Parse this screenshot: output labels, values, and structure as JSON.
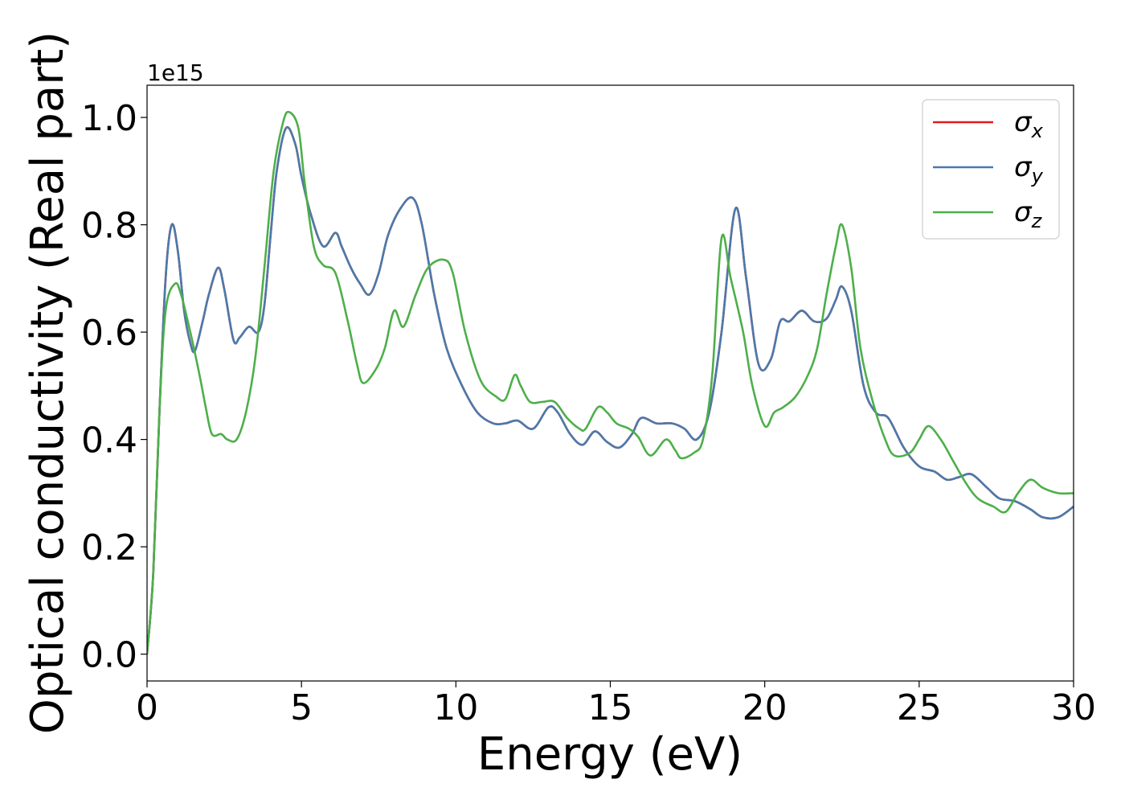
{
  "chart_data": {
    "type": "line",
    "title": "",
    "xlabel": "Energy (eV)",
    "ylabel": "Optical conductivity (Real part)",
    "y_offset_label": "1e15",
    "xlim": [
      0,
      30
    ],
    "ylim": [
      -0.05,
      1.06
    ],
    "x_ticks": [
      0,
      5,
      10,
      15,
      20,
      25,
      30
    ],
    "x_tick_labels": [
      "0",
      "5",
      "10",
      "15",
      "20",
      "25",
      "30"
    ],
    "y_ticks": [
      0.0,
      0.2,
      0.4,
      0.6,
      0.8,
      1.0
    ],
    "y_tick_labels": [
      "0.0",
      "0.2",
      "0.4",
      "0.6",
      "0.8",
      "1.0"
    ],
    "grid": false,
    "legend_position": "top-right",
    "series": [
      {
        "name": "σx",
        "symbol": "σ",
        "subscript": "x",
        "color": "#e41a1c",
        "points": [
          [
            0,
            0
          ],
          [
            0.2,
            0.15
          ],
          [
            0.4,
            0.45
          ],
          [
            0.6,
            0.7
          ],
          [
            0.8,
            0.8
          ],
          [
            1.0,
            0.75
          ],
          [
            1.2,
            0.64
          ],
          [
            1.4,
            0.58
          ],
          [
            1.55,
            0.565
          ],
          [
            1.8,
            0.62
          ],
          [
            2.0,
            0.67
          ],
          [
            2.3,
            0.72
          ],
          [
            2.5,
            0.68
          ],
          [
            2.8,
            0.585
          ],
          [
            3.0,
            0.59
          ],
          [
            3.3,
            0.61
          ],
          [
            3.6,
            0.6
          ],
          [
            3.8,
            0.65
          ],
          [
            4.0,
            0.78
          ],
          [
            4.2,
            0.9
          ],
          [
            4.5,
            0.98
          ],
          [
            4.8,
            0.95
          ],
          [
            5.0,
            0.89
          ],
          [
            5.3,
            0.82
          ],
          [
            5.7,
            0.76
          ],
          [
            6.1,
            0.785
          ],
          [
            6.3,
            0.76
          ],
          [
            6.6,
            0.72
          ],
          [
            6.9,
            0.69
          ],
          [
            7.2,
            0.67
          ],
          [
            7.5,
            0.71
          ],
          [
            7.8,
            0.78
          ],
          [
            8.2,
            0.83
          ],
          [
            8.6,
            0.85
          ],
          [
            8.9,
            0.8
          ],
          [
            9.3,
            0.67
          ],
          [
            9.7,
            0.57
          ],
          [
            10.2,
            0.5
          ],
          [
            10.7,
            0.45
          ],
          [
            11.2,
            0.43
          ],
          [
            11.6,
            0.43
          ],
          [
            12.0,
            0.435
          ],
          [
            12.5,
            0.42
          ],
          [
            13.0,
            0.46
          ],
          [
            13.3,
            0.45
          ],
          [
            13.7,
            0.41
          ],
          [
            14.1,
            0.39
          ],
          [
            14.5,
            0.415
          ],
          [
            14.9,
            0.395
          ],
          [
            15.3,
            0.385
          ],
          [
            15.7,
            0.41
          ],
          [
            16.0,
            0.44
          ],
          [
            16.5,
            0.43
          ],
          [
            17.0,
            0.43
          ],
          [
            17.4,
            0.42
          ],
          [
            17.8,
            0.4
          ],
          [
            18.2,
            0.45
          ],
          [
            18.6,
            0.6
          ],
          [
            19.05,
            0.83
          ],
          [
            19.4,
            0.7
          ],
          [
            19.8,
            0.54
          ],
          [
            20.2,
            0.55
          ],
          [
            20.5,
            0.62
          ],
          [
            20.8,
            0.62
          ],
          [
            21.2,
            0.64
          ],
          [
            21.6,
            0.62
          ],
          [
            22.0,
            0.625
          ],
          [
            22.3,
            0.66
          ],
          [
            22.5,
            0.685
          ],
          [
            22.8,
            0.64
          ],
          [
            23.2,
            0.5
          ],
          [
            23.6,
            0.45
          ],
          [
            24.0,
            0.44
          ],
          [
            24.5,
            0.385
          ],
          [
            25.0,
            0.35
          ],
          [
            25.5,
            0.34
          ],
          [
            25.9,
            0.325
          ],
          [
            26.3,
            0.33
          ],
          [
            26.7,
            0.335
          ],
          [
            27.2,
            0.31
          ],
          [
            27.6,
            0.29
          ],
          [
            28.1,
            0.285
          ],
          [
            28.6,
            0.27
          ],
          [
            29.0,
            0.255
          ],
          [
            29.5,
            0.255
          ],
          [
            30,
            0.275
          ]
        ]
      },
      {
        "name": "σy",
        "symbol": "σ",
        "subscript": "y",
        "color": "#4a7aab",
        "points": [
          [
            0,
            0
          ],
          [
            0.2,
            0.15
          ],
          [
            0.4,
            0.45
          ],
          [
            0.6,
            0.7
          ],
          [
            0.8,
            0.8
          ],
          [
            1.0,
            0.75
          ],
          [
            1.2,
            0.64
          ],
          [
            1.4,
            0.58
          ],
          [
            1.55,
            0.565
          ],
          [
            1.8,
            0.62
          ],
          [
            2.0,
            0.67
          ],
          [
            2.3,
            0.72
          ],
          [
            2.5,
            0.68
          ],
          [
            2.8,
            0.585
          ],
          [
            3.0,
            0.59
          ],
          [
            3.3,
            0.61
          ],
          [
            3.6,
            0.6
          ],
          [
            3.8,
            0.65
          ],
          [
            4.0,
            0.78
          ],
          [
            4.2,
            0.9
          ],
          [
            4.5,
            0.98
          ],
          [
            4.8,
            0.95
          ],
          [
            5.0,
            0.89
          ],
          [
            5.3,
            0.82
          ],
          [
            5.7,
            0.76
          ],
          [
            6.1,
            0.785
          ],
          [
            6.3,
            0.76
          ],
          [
            6.6,
            0.72
          ],
          [
            6.9,
            0.69
          ],
          [
            7.2,
            0.67
          ],
          [
            7.5,
            0.71
          ],
          [
            7.8,
            0.78
          ],
          [
            8.2,
            0.83
          ],
          [
            8.6,
            0.85
          ],
          [
            8.9,
            0.8
          ],
          [
            9.3,
            0.67
          ],
          [
            9.7,
            0.57
          ],
          [
            10.2,
            0.5
          ],
          [
            10.7,
            0.45
          ],
          [
            11.2,
            0.43
          ],
          [
            11.6,
            0.43
          ],
          [
            12.0,
            0.435
          ],
          [
            12.5,
            0.42
          ],
          [
            13.0,
            0.46
          ],
          [
            13.3,
            0.45
          ],
          [
            13.7,
            0.41
          ],
          [
            14.1,
            0.39
          ],
          [
            14.5,
            0.415
          ],
          [
            14.9,
            0.395
          ],
          [
            15.3,
            0.385
          ],
          [
            15.7,
            0.41
          ],
          [
            16.0,
            0.44
          ],
          [
            16.5,
            0.43
          ],
          [
            17.0,
            0.43
          ],
          [
            17.4,
            0.42
          ],
          [
            17.8,
            0.4
          ],
          [
            18.2,
            0.45
          ],
          [
            18.6,
            0.6
          ],
          [
            19.05,
            0.83
          ],
          [
            19.4,
            0.7
          ],
          [
            19.8,
            0.54
          ],
          [
            20.2,
            0.55
          ],
          [
            20.5,
            0.62
          ],
          [
            20.8,
            0.62
          ],
          [
            21.2,
            0.64
          ],
          [
            21.6,
            0.62
          ],
          [
            22.0,
            0.625
          ],
          [
            22.3,
            0.66
          ],
          [
            22.5,
            0.685
          ],
          [
            22.8,
            0.64
          ],
          [
            23.2,
            0.5
          ],
          [
            23.6,
            0.45
          ],
          [
            24.0,
            0.44
          ],
          [
            24.5,
            0.385
          ],
          [
            25.0,
            0.35
          ],
          [
            25.5,
            0.34
          ],
          [
            25.9,
            0.325
          ],
          [
            26.3,
            0.33
          ],
          [
            26.7,
            0.335
          ],
          [
            27.2,
            0.31
          ],
          [
            27.6,
            0.29
          ],
          [
            28.1,
            0.285
          ],
          [
            28.6,
            0.27
          ],
          [
            29.0,
            0.255
          ],
          [
            29.5,
            0.255
          ],
          [
            30,
            0.275
          ]
        ]
      },
      {
        "name": "σz",
        "symbol": "σ",
        "subscript": "z",
        "color": "#4daf4a",
        "points": [
          [
            0,
            0
          ],
          [
            0.2,
            0.15
          ],
          [
            0.4,
            0.45
          ],
          [
            0.6,
            0.64
          ],
          [
            0.9,
            0.69
          ],
          [
            1.1,
            0.67
          ],
          [
            1.4,
            0.6
          ],
          [
            1.7,
            0.52
          ],
          [
            1.9,
            0.46
          ],
          [
            2.1,
            0.41
          ],
          [
            2.4,
            0.41
          ],
          [
            2.6,
            0.4
          ],
          [
            2.9,
            0.4
          ],
          [
            3.2,
            0.45
          ],
          [
            3.5,
            0.55
          ],
          [
            3.8,
            0.72
          ],
          [
            4.1,
            0.9
          ],
          [
            4.4,
            0.99
          ],
          [
            4.6,
            1.01
          ],
          [
            4.9,
            0.98
          ],
          [
            5.1,
            0.88
          ],
          [
            5.4,
            0.76
          ],
          [
            5.7,
            0.725
          ],
          [
            6.1,
            0.71
          ],
          [
            6.5,
            0.62
          ],
          [
            6.8,
            0.54
          ],
          [
            7.0,
            0.505
          ],
          [
            7.4,
            0.53
          ],
          [
            7.7,
            0.57
          ],
          [
            8.0,
            0.64
          ],
          [
            8.3,
            0.61
          ],
          [
            8.7,
            0.67
          ],
          [
            9.1,
            0.72
          ],
          [
            9.6,
            0.735
          ],
          [
            9.9,
            0.71
          ],
          [
            10.3,
            0.6
          ],
          [
            10.8,
            0.51
          ],
          [
            11.3,
            0.48
          ],
          [
            11.6,
            0.475
          ],
          [
            11.9,
            0.52
          ],
          [
            12.1,
            0.5
          ],
          [
            12.4,
            0.47
          ],
          [
            12.8,
            0.47
          ],
          [
            13.2,
            0.47
          ],
          [
            13.6,
            0.44
          ],
          [
            14.0,
            0.42
          ],
          [
            14.2,
            0.42
          ],
          [
            14.6,
            0.46
          ],
          [
            14.9,
            0.45
          ],
          [
            15.2,
            0.43
          ],
          [
            15.6,
            0.42
          ],
          [
            15.9,
            0.405
          ],
          [
            16.3,
            0.37
          ],
          [
            16.8,
            0.4
          ],
          [
            17.1,
            0.38
          ],
          [
            17.3,
            0.365
          ],
          [
            17.7,
            0.375
          ],
          [
            18.0,
            0.4
          ],
          [
            18.3,
            0.52
          ],
          [
            18.6,
            0.775
          ],
          [
            18.9,
            0.7
          ],
          [
            19.3,
            0.6
          ],
          [
            19.6,
            0.5
          ],
          [
            20.0,
            0.425
          ],
          [
            20.3,
            0.45
          ],
          [
            20.6,
            0.46
          ],
          [
            21.0,
            0.48
          ],
          [
            21.4,
            0.52
          ],
          [
            21.7,
            0.57
          ],
          [
            22.0,
            0.67
          ],
          [
            22.3,
            0.76
          ],
          [
            22.5,
            0.8
          ],
          [
            22.8,
            0.72
          ],
          [
            23.1,
            0.57
          ],
          [
            23.5,
            0.47
          ],
          [
            23.9,
            0.4
          ],
          [
            24.2,
            0.37
          ],
          [
            24.7,
            0.375
          ],
          [
            25.0,
            0.4
          ],
          [
            25.3,
            0.425
          ],
          [
            25.7,
            0.4
          ],
          [
            26.1,
            0.36
          ],
          [
            26.5,
            0.32
          ],
          [
            26.9,
            0.29
          ],
          [
            27.4,
            0.275
          ],
          [
            27.8,
            0.265
          ],
          [
            28.2,
            0.3
          ],
          [
            28.6,
            0.325
          ],
          [
            29.0,
            0.31
          ],
          [
            29.5,
            0.3
          ],
          [
            30,
            0.3
          ]
        ]
      }
    ]
  }
}
